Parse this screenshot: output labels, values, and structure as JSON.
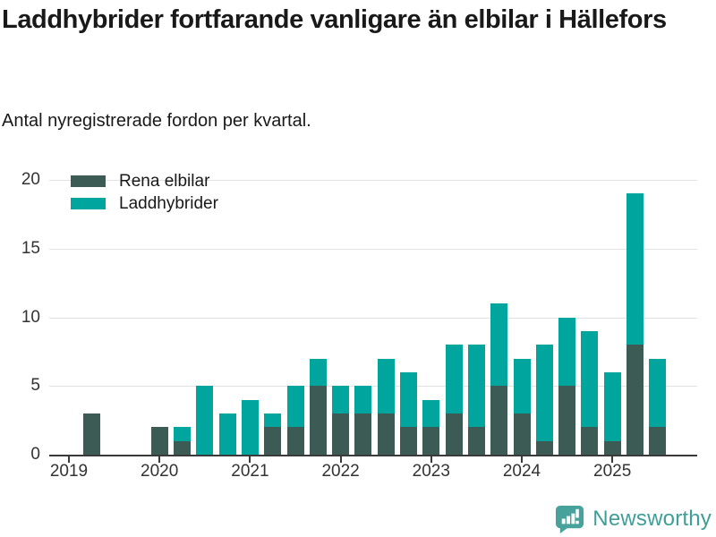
{
  "header": {
    "title": "Laddhybrider fortfarande vanligare än elbilar i Hällefors",
    "subtitle": "Antal nyregistrerade fordon per kvartal."
  },
  "chart_data": {
    "type": "bar",
    "stacked": true,
    "title": "Laddhybrider fortfarande vanligare än elbilar i Hällefors",
    "subtitle": "Antal nyregistrerade fordon per kvartal.",
    "grid": true,
    "legend_position": "top-left",
    "ylim": [
      0,
      20
    ],
    "yticks": [
      0,
      5,
      10,
      15,
      20
    ],
    "x_tick_labels": [
      "2019",
      "2020",
      "2021",
      "2022",
      "2023",
      "2024",
      "2025"
    ],
    "quarters_per_year": 4,
    "categories": [
      "2019 Q1",
      "2019 Q2",
      "2019 Q3",
      "2019 Q4",
      "2020 Q1",
      "2020 Q2",
      "2020 Q3",
      "2020 Q4",
      "2021 Q1",
      "2021 Q2",
      "2021 Q3",
      "2021 Q4",
      "2022 Q1",
      "2022 Q2",
      "2022 Q3",
      "2022 Q4",
      "2023 Q1",
      "2023 Q2",
      "2023 Q3",
      "2023 Q4",
      "2024 Q1",
      "2024 Q2",
      "2024 Q3",
      "2024 Q4",
      "2025 Q1",
      "2025 Q2",
      "2025 Q3"
    ],
    "series": [
      {
        "name": "Rena elbilar",
        "color": "#3b5b54",
        "values": [
          0,
          3,
          0,
          0,
          2,
          1,
          0,
          0,
          0,
          2,
          2,
          5,
          3,
          3,
          3,
          2,
          2,
          3,
          2,
          5,
          3,
          1,
          5,
          2,
          1,
          8,
          2
        ]
      },
      {
        "name": "Laddhybrider",
        "color": "#00a69e",
        "values": [
          0,
          0,
          0,
          0,
          0,
          1,
          5,
          3,
          4,
          1,
          3,
          2,
          2,
          2,
          4,
          4,
          2,
          5,
          6,
          6,
          4,
          7,
          5,
          7,
          5,
          11,
          5
        ]
      }
    ]
  },
  "footer": {
    "brand": "Newsworthy",
    "brand_color": "#3f9e97",
    "logo_color": "#47a29b",
    "logo_glyph_color": "#ffffff"
  }
}
